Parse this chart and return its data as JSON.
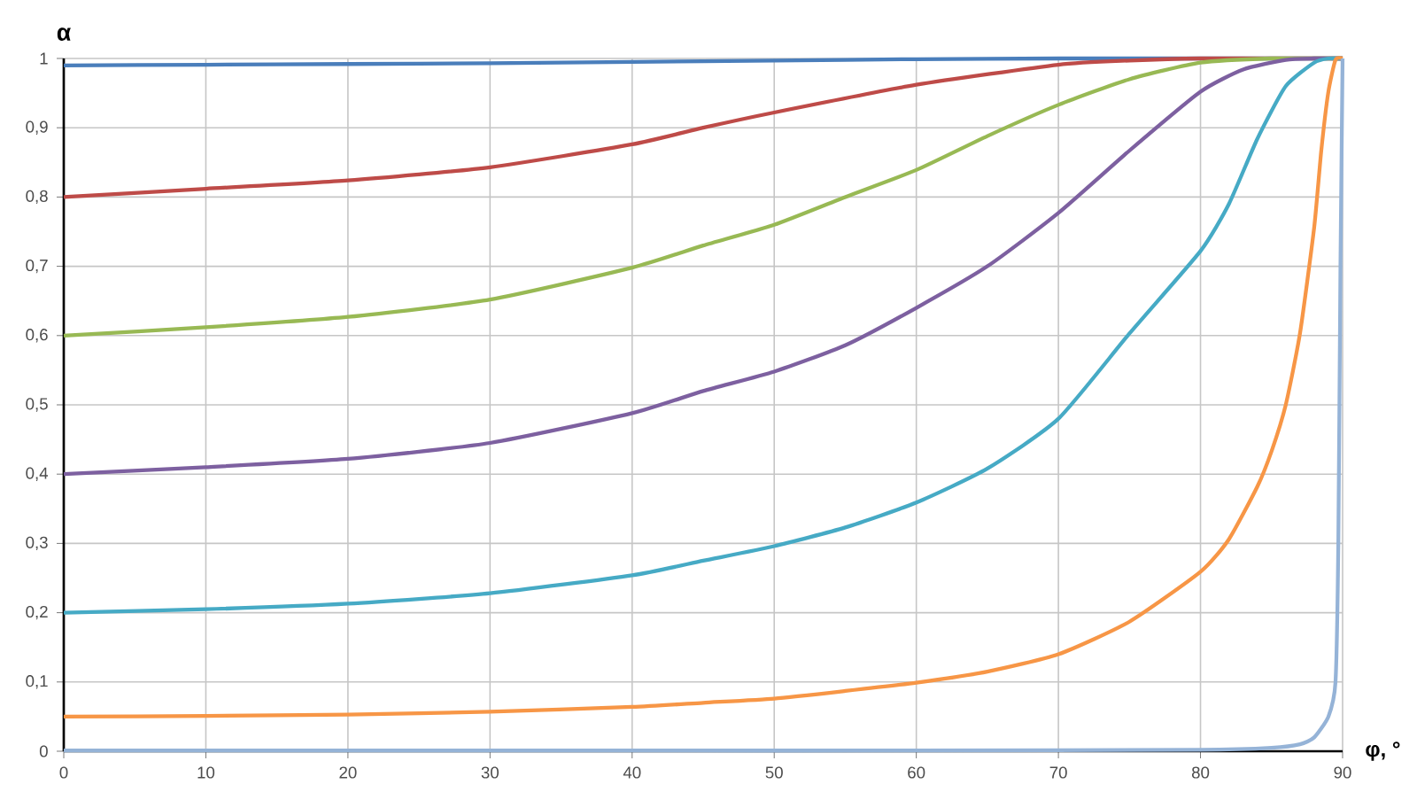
{
  "chart_data": {
    "type": "line",
    "xlabel": "φ, °",
    "ylabel": "α",
    "xlim": [
      0,
      90
    ],
    "ylim": [
      0,
      1
    ],
    "xticks": [
      0,
      10,
      20,
      30,
      40,
      50,
      60,
      70,
      80,
      90
    ],
    "yticks": [
      0,
      {
        "value": 0.1,
        "label": "0,1"
      },
      {
        "value": 0.2,
        "label": "0,2"
      },
      {
        "value": 0.3,
        "label": "0,3"
      },
      {
        "value": 0.4,
        "label": "0,4"
      },
      {
        "value": 0.5,
        "label": "0,5"
      },
      {
        "value": 0.6,
        "label": "0,6"
      },
      {
        "value": 0.7,
        "label": "0,7"
      },
      {
        "value": 0.8,
        "label": "0,8"
      },
      {
        "value": 0.9,
        "label": "0,9"
      },
      1
    ],
    "grid": true,
    "series": [
      {
        "color": "#4a7ebb",
        "x": [
          0,
          10,
          20,
          30,
          40,
          50,
          60,
          70,
          80,
          90
        ],
        "values": [
          0.99,
          0.991,
          0.992,
          0.993,
          0.995,
          0.997,
          0.999,
          1.0,
          1.0,
          1.0
        ]
      },
      {
        "color": "#be4b48",
        "x": [
          0,
          10,
          20,
          30,
          40,
          45,
          50,
          60,
          70,
          75,
          80,
          90
        ],
        "values": [
          0.8,
          0.812,
          0.824,
          0.843,
          0.876,
          0.9,
          0.922,
          0.962,
          0.991,
          0.997,
          1.0,
          1.0
        ]
      },
      {
        "color": "#98b954",
        "x": [
          0,
          10,
          20,
          30,
          40,
          45,
          50,
          55,
          60,
          65,
          70,
          75,
          80,
          85,
          90
        ],
        "values": [
          0.6,
          0.612,
          0.627,
          0.652,
          0.698,
          0.73,
          0.76,
          0.8,
          0.839,
          0.888,
          0.933,
          0.97,
          0.994,
          1.0,
          1.0
        ]
      },
      {
        "color": "#7d60a0",
        "x": [
          0,
          10,
          20,
          30,
          40,
          45,
          50,
          55,
          60,
          65,
          70,
          75,
          80,
          83,
          86,
          88,
          90
        ],
        "values": [
          0.4,
          0.41,
          0.422,
          0.445,
          0.488,
          0.52,
          0.548,
          0.586,
          0.64,
          0.7,
          0.777,
          0.867,
          0.952,
          0.984,
          0.998,
          1.0,
          1.0
        ]
      },
      {
        "color": "#46aac5",
        "x": [
          0,
          10,
          20,
          30,
          40,
          45,
          50,
          55,
          60,
          65,
          70,
          75,
          80,
          82,
          84,
          86,
          88,
          89,
          90
        ],
        "values": [
          0.2,
          0.205,
          0.213,
          0.228,
          0.254,
          0.275,
          0.296,
          0.323,
          0.359,
          0.408,
          0.48,
          0.603,
          0.722,
          0.79,
          0.884,
          0.96,
          0.994,
          1.0,
          1.0
        ]
      },
      {
        "color": "#f79646",
        "x": [
          0,
          10,
          20,
          30,
          40,
          45,
          50,
          55,
          60,
          65,
          70,
          75,
          80,
          82,
          84,
          85,
          86,
          87,
          88,
          88.5,
          89,
          89.5,
          90
        ],
        "values": [
          0.05,
          0.051,
          0.053,
          0.057,
          0.064,
          0.07,
          0.076,
          0.087,
          0.099,
          0.115,
          0.14,
          0.187,
          0.259,
          0.306,
          0.382,
          0.433,
          0.5,
          0.603,
          0.756,
          0.867,
          0.952,
          0.998,
          1.0
        ]
      },
      {
        "color": "#95b3d7",
        "x": [
          0,
          20,
          40,
          60,
          80,
          85,
          87,
          88,
          89,
          89.5,
          89.7,
          89.85,
          90
        ],
        "values": [
          0.001,
          0.001,
          0.001,
          0.001,
          0.002,
          0.005,
          0.01,
          0.02,
          0.05,
          0.1,
          0.3,
          0.7,
          1.0
        ]
      }
    ]
  }
}
